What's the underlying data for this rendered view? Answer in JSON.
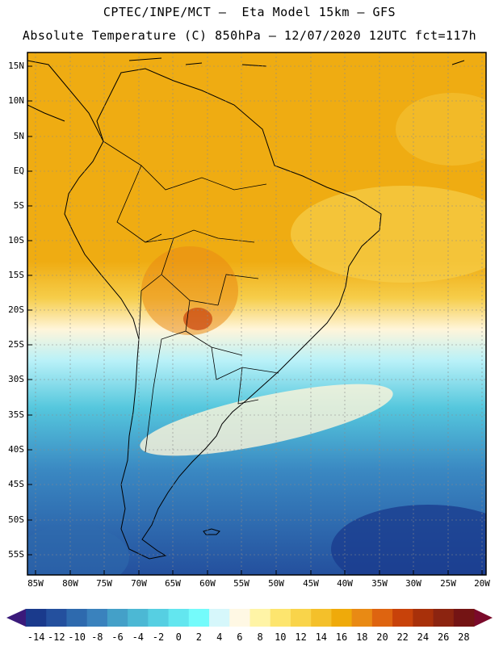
{
  "header": {
    "title_line1": "CPTEC/INPE/MCT –  Eta Model 15km – GFS",
    "title_line2": "Absolute Temperature (C) 850hPa – 12/07/2020 12UTC fct=117h"
  },
  "map": {
    "lat_labels": [
      "15N",
      "10N",
      "5N",
      "EQ",
      "5S",
      "10S",
      "15S",
      "20S",
      "25S",
      "30S",
      "35S",
      "40S",
      "45S",
      "50S",
      "55S"
    ],
    "lon_labels": [
      "85W",
      "80W",
      "75W",
      "70W",
      "65W",
      "60W",
      "55W",
      "50W",
      "45W",
      "40W",
      "35W",
      "30W",
      "25W",
      "20W"
    ]
  },
  "colorbar": {
    "labels": [
      "-14",
      "-12",
      "-10",
      "-8",
      "-6",
      "-4",
      "-2",
      "0",
      "2",
      "4",
      "6",
      "8",
      "10",
      "12",
      "14",
      "16",
      "18",
      "20",
      "22",
      "24",
      "26",
      "28"
    ],
    "colors": [
      "#1a3a8c",
      "#24509e",
      "#2e6aae",
      "#3a82bd",
      "#44a0c8",
      "#4cb8d4",
      "#56cfe2",
      "#63e6ef",
      "#74fbfb",
      "#d6f7fb",
      "#fff8e4",
      "#fff4a6",
      "#fde56e",
      "#f9d44a",
      "#f4c02a",
      "#efaa0a",
      "#e98a14",
      "#de6410",
      "#c8420a",
      "#a8300a",
      "#8c2410",
      "#741414"
    ],
    "left_arrow_color": "#3a1a7a",
    "right_arrow_color": "#7a0a2a"
  }
}
